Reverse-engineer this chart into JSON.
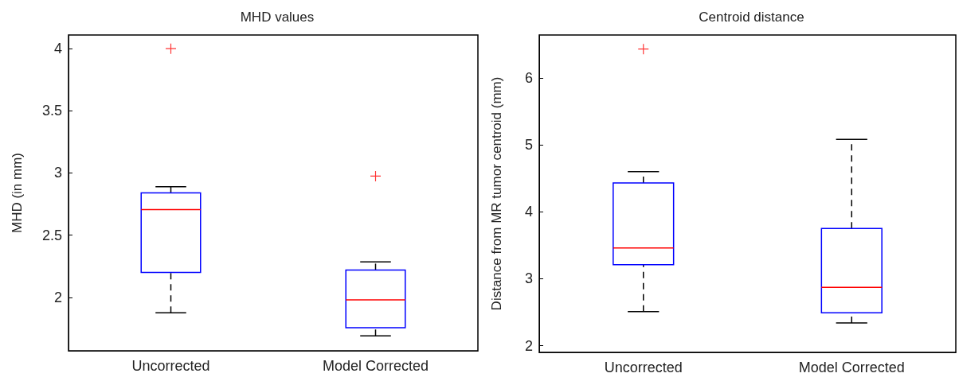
{
  "chart_data": [
    {
      "type": "box",
      "title": "MHD values",
      "ylabel": "MHD (in mm)",
      "categories": [
        "Uncorrected",
        "Model Corrected"
      ],
      "color": "#0000ff",
      "boxes": [
        {
          "low": 1.875,
          "q1": 2.2,
          "median": 2.705,
          "q3": 2.84,
          "high": 2.89,
          "outliers": [
            4.0
          ]
        },
        {
          "low": 1.69,
          "q1": 1.755,
          "median": 1.98,
          "q3": 2.22,
          "high": 2.285,
          "outliers": [
            2.975
          ]
        }
      ],
      "ylim": [
        1.57,
        4.11
      ],
      "yticks": [
        2,
        2.5,
        3,
        3.5,
        4
      ]
    },
    {
      "type": "box",
      "title": "Centroid distance",
      "ylabel": "Distance from MR tumor centroid (mm)",
      "categories": [
        "Uncorrected",
        "Model Corrected"
      ],
      "color": "#0000ff",
      "boxes": [
        {
          "low": 2.51,
          "q1": 3.21,
          "median": 3.46,
          "q3": 4.43,
          "high": 4.6,
          "outliers": [
            6.43
          ]
        },
        {
          "low": 2.34,
          "q1": 2.49,
          "median": 2.87,
          "q3": 3.75,
          "high": 5.08
        }
      ],
      "ylim": [
        1.9,
        6.64
      ],
      "yticks": [
        2,
        3,
        4,
        5,
        6
      ]
    }
  ]
}
